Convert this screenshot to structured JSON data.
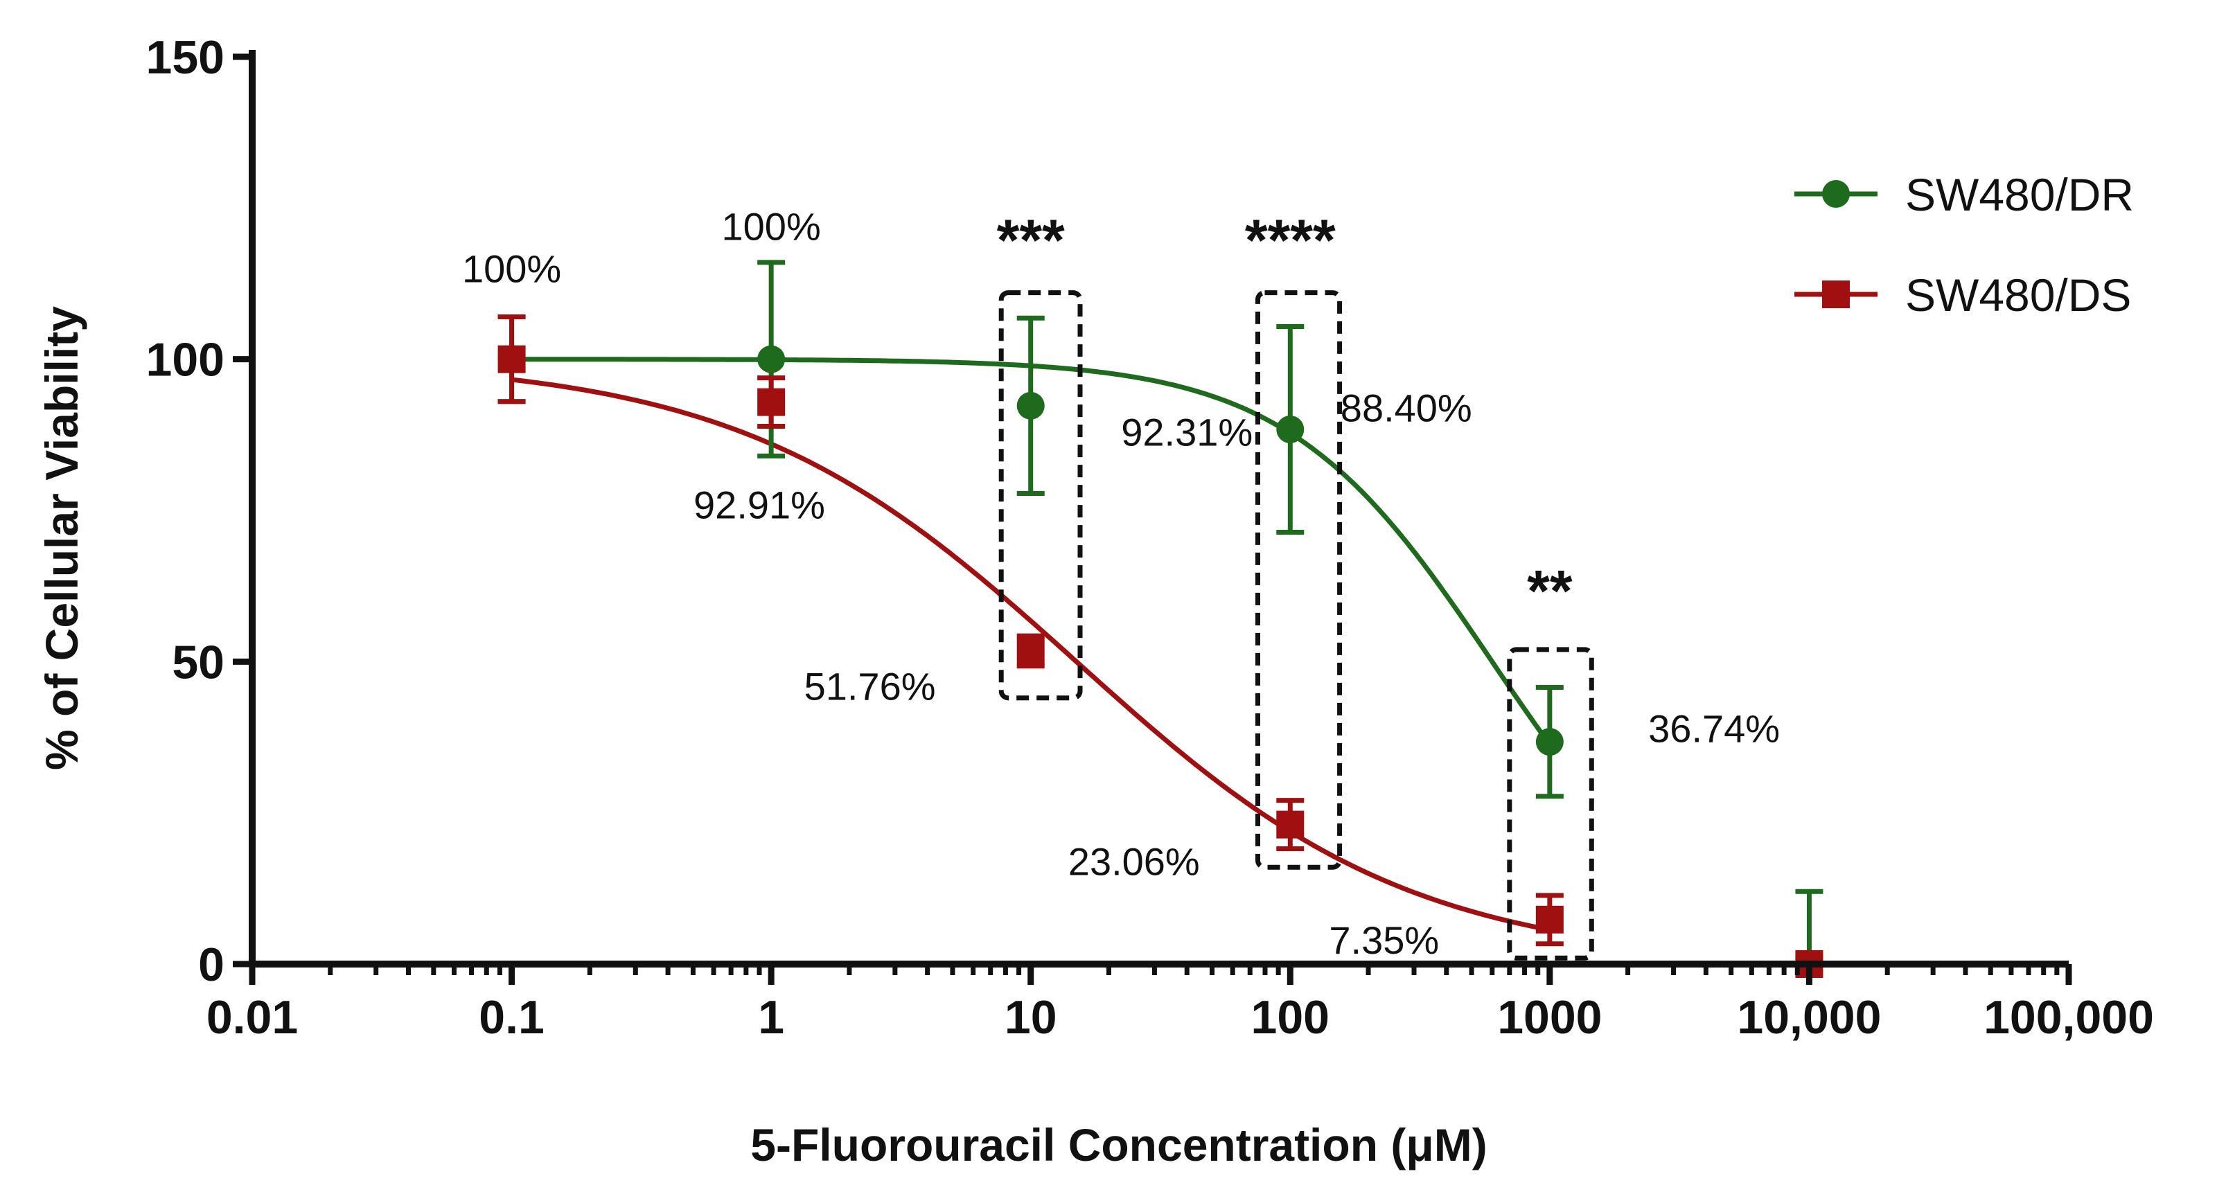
{
  "chart_data": {
    "type": "scatter",
    "title": "",
    "xlabel": "5-Fluorouracil Concentration (μM)",
    "ylabel": "% of Cellular Viability",
    "xscale": "log",
    "xlim": [
      0.01,
      100000
    ],
    "ylim": [
      0,
      150
    ],
    "grid": false,
    "legend_position": "top-right",
    "x_ticks": [
      0.01,
      0.1,
      1,
      10,
      100,
      1000,
      10000,
      100000
    ],
    "x_tick_labels": [
      "0.01",
      "0.1",
      "1",
      "10",
      "100",
      "1000",
      "10,000",
      "100,000"
    ],
    "y_ticks": [
      0,
      50,
      100,
      150
    ],
    "y_tick_labels": [
      "0",
      "50",
      "100",
      "150"
    ],
    "series": [
      {
        "name": "SW480/DR",
        "color": "#1e6b1e",
        "marker": "circle",
        "x": [
          0.1,
          1,
          10,
          100,
          1000,
          10000
        ],
        "y": [
          100,
          100,
          92.31,
          88.4,
          36.74,
          0
        ],
        "error": [
          7,
          16,
          14.5,
          17,
          9,
          12
        ],
        "fit": {
          "top": 100,
          "bottom": 0,
          "ic50": 600,
          "hill": 1.1
        }
      },
      {
        "name": "SW480/DS",
        "color": "#a01010",
        "marker": "square",
        "x": [
          0.1,
          1,
          10,
          100,
          1000,
          10000
        ],
        "y": [
          100,
          92.91,
          51.76,
          23.06,
          7.35,
          0
        ],
        "error": [
          7,
          4,
          2.5,
          4,
          4,
          1
        ],
        "fit": {
          "top": 100,
          "bottom": 0,
          "ic50": 15,
          "hill": 0.67
        }
      }
    ],
    "annotations": [
      {
        "text": "100%",
        "x": 0.1,
        "y": 115
      },
      {
        "text": "100%",
        "x": 1,
        "y": 122
      },
      {
        "text": "92.31%",
        "x": 40,
        "y": 88
      },
      {
        "text": "88.40%",
        "x": 280,
        "y": 92
      },
      {
        "text": "92.91%",
        "x": 0.9,
        "y": 76
      },
      {
        "text": "51.76%",
        "x": 2.4,
        "y": 46
      },
      {
        "text": "23.06%",
        "x": 25,
        "y": 17
      },
      {
        "text": "7.35%",
        "x": 230,
        "y": 4
      },
      {
        "text": "36.74%",
        "x": 4300,
        "y": 39
      }
    ],
    "significance": [
      {
        "text": "***",
        "x": 10,
        "y": 121,
        "box": {
          "x0": 7.7,
          "x1": 15.5,
          "y0": 44,
          "y1": 111
        }
      },
      {
        "text": "****",
        "x": 100,
        "y": 121,
        "box": {
          "x0": 75,
          "x1": 155,
          "y0": 16,
          "y1": 111
        }
      },
      {
        "text": "**",
        "x": 1000,
        "y": 63,
        "box": {
          "x0": 700,
          "x1": 1450,
          "y0": 1,
          "y1": 52
        }
      }
    ]
  }
}
